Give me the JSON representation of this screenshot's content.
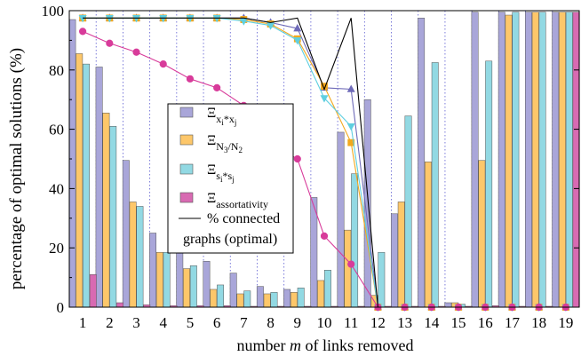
{
  "chart_data": {
    "type": "bar",
    "xlabel": "number m of links removed",
    "xlabel_parts": [
      "number ",
      "m",
      " of links removed"
    ],
    "ylabel": "percentage of optimal solutions (%)",
    "categories": [
      "1",
      "2",
      "3",
      "4",
      "5",
      "6",
      "7",
      "8",
      "9",
      "10",
      "11",
      "12",
      "13",
      "14",
      "15",
      "16",
      "17",
      "18",
      "19"
    ],
    "ylim": [
      0,
      100
    ],
    "yticks": [
      "0",
      "20",
      "40",
      "60",
      "80",
      "100"
    ],
    "grid": "vertical dotted lines between categories",
    "legend_position": "center-left",
    "series": [
      {
        "name": "Ξ x_i*x_j",
        "kind": "bar",
        "color": "#a9a6d9",
        "values": [
          97,
          81,
          49.5,
          25,
          20,
          15.5,
          11.5,
          7,
          6,
          37,
          59,
          70,
          31.5,
          97.5,
          1.5,
          99.5,
          99.5,
          99.5,
          99.5
        ]
      },
      {
        "name": "Ξ N3/N2",
        "kind": "bar",
        "color": "#fdc76a",
        "values": [
          85.5,
          65.5,
          35.5,
          18.5,
          13,
          6,
          4.5,
          4.5,
          5,
          9,
          26,
          4,
          35.5,
          49,
          1.5,
          49.5,
          98.5,
          99.5,
          99.5
        ]
      },
      {
        "name": "Ξ s_i*s_j",
        "kind": "bar",
        "color": "#92d9e3",
        "values": [
          82,
          61,
          34,
          18.5,
          14,
          7.5,
          5.5,
          5,
          6.5,
          12.5,
          45,
          18.5,
          64.5,
          82.5,
          1,
          83,
          99.5,
          99.5,
          99.5
        ]
      },
      {
        "name": "Ξ assortativity",
        "kind": "bar",
        "color": "#d86ab2",
        "values": [
          11,
          1.5,
          0.8,
          0.5,
          0.5,
          0.5,
          0.3,
          0.3,
          0.3,
          0.3,
          0.3,
          0.3,
          0.3,
          0.3,
          0.3,
          0.5,
          0.3,
          0.3,
          99.5
        ]
      },
      {
        "name": "% connected graphs (optimal)",
        "kind": "line",
        "color": "#000000",
        "values": [
          97.5,
          97.5,
          97.5,
          97.5,
          97.5,
          97.5,
          97.5,
          96,
          97.5,
          73.5,
          97.5,
          0,
          0,
          0,
          0,
          0,
          0,
          0,
          0
        ]
      }
    ],
    "overlay_lines": [
      {
        "name": "x_i*x_j line",
        "color": "#6e6ab8",
        "marker": "triangle",
        "values": [
          97.5,
          97.5,
          97.5,
          97.5,
          97.5,
          97.5,
          97.5,
          96,
          94,
          74,
          73.5,
          0,
          0,
          0,
          0,
          0,
          0,
          0,
          0
        ]
      },
      {
        "name": "N3/N2 line",
        "color": "#f2a81d",
        "marker": "square",
        "values": [
          97.5,
          97.5,
          97.5,
          97.5,
          97.5,
          97.5,
          97,
          95.5,
          90.5,
          74.5,
          55.5,
          0,
          0,
          0,
          0,
          0,
          0,
          0,
          0
        ]
      },
      {
        "name": "s_i*s_j line",
        "color": "#5fcfe0",
        "marker": "triangle-down",
        "values": [
          97.5,
          97.5,
          97.5,
          97.5,
          97.5,
          97.5,
          96.5,
          95,
          90,
          70.5,
          61,
          0,
          0,
          0,
          0,
          0,
          0,
          0,
          0
        ]
      },
      {
        "name": "assortativity line",
        "color": "#d83b9a",
        "marker": "circle",
        "values": [
          93,
          89,
          86,
          82,
          77,
          74,
          68,
          55,
          50,
          24,
          14.5,
          0,
          0,
          0,
          0,
          0,
          0,
          0,
          0
        ]
      }
    ],
    "legend": [
      {
        "base": "Ξ",
        "sub": "x",
        "subsub": "i",
        "mid": "*",
        "sub2": "x",
        "subsub2": "j",
        "color": "#a9a6d9"
      },
      {
        "base": "Ξ",
        "sub": "N",
        "subsub": "3",
        "mid": "/N",
        "sub2": "",
        "subsub2": "2",
        "color": "#fdc76a"
      },
      {
        "base": "Ξ",
        "sub": "s",
        "subsub": "i",
        "mid": "*",
        "sub2": "s",
        "subsub2": "j",
        "color": "#92d9e3"
      },
      {
        "base": "Ξ",
        "sub": "assortativity",
        "subsub": "",
        "mid": "",
        "sub2": "",
        "subsub2": "",
        "color": "#d86ab2"
      },
      {
        "base": "% connected",
        "sub": "",
        "subsub": "",
        "mid": "",
        "sub2": "",
        "subsub2": "",
        "color": "#000000",
        "line2": "graphs (optimal)"
      }
    ]
  }
}
